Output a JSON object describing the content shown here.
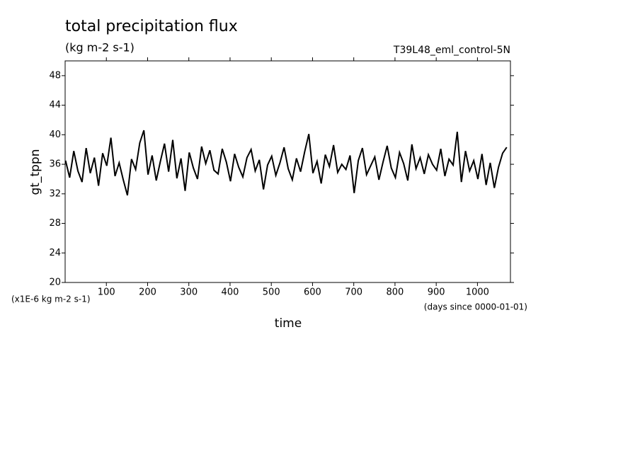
{
  "chart_data": {
    "type": "line",
    "title": "total precipitation flux",
    "subtitle": "(kg m-2 s-1)",
    "annotation": "T39L48_eml_control-5N",
    "y_label": "gt_tppn",
    "x_label": "time",
    "y_unit_note": "(x1E-6 kg m-2 s-1)",
    "x_unit_note": "(days since 0000-01-01)",
    "xlim": [
      0,
      1080
    ],
    "xticks": [
      100,
      200,
      300,
      400,
      500,
      600,
      700,
      800,
      900,
      1000
    ],
    "ylim": [
      20,
      50
    ],
    "yticks": [
      20,
      24,
      28,
      32,
      36,
      40,
      44,
      48
    ],
    "x": [
      1,
      11,
      21,
      31,
      41,
      51,
      61,
      71,
      81,
      91,
      101,
      111,
      121,
      131,
      141,
      151,
      161,
      171,
      181,
      191,
      201,
      211,
      221,
      231,
      241,
      251,
      261,
      271,
      281,
      291,
      301,
      311,
      321,
      331,
      341,
      351,
      361,
      371,
      381,
      391,
      401,
      411,
      421,
      431,
      441,
      451,
      461,
      471,
      481,
      491,
      501,
      511,
      521,
      531,
      541,
      551,
      561,
      571,
      581,
      591,
      601,
      611,
      621,
      631,
      641,
      651,
      661,
      671,
      681,
      691,
      701,
      711,
      721,
      731,
      741,
      751,
      761,
      771,
      781,
      791,
      801,
      811,
      821,
      831,
      841,
      851,
      861,
      871,
      881,
      891,
      901,
      911,
      921,
      931,
      941,
      951,
      961,
      971,
      981,
      991,
      1001,
      1011,
      1021,
      1031,
      1041,
      1051,
      1061,
      1071
    ],
    "series": [
      {
        "name": "gt_tppn",
        "color": "#000000",
        "values": [
          36.5,
          34.2,
          37.8,
          35.1,
          33.6,
          38.2,
          34.8,
          36.9,
          33.1,
          37.5,
          35.8,
          39.6,
          34.4,
          36.2,
          33.9,
          31.8,
          36.7,
          35.3,
          38.9,
          40.6,
          34.6,
          37.2,
          33.8,
          36.4,
          38.8,
          35.0,
          39.3,
          34.1,
          36.8,
          32.4,
          37.6,
          35.5,
          34.0,
          38.4,
          36.1,
          37.9,
          35.2,
          34.7,
          38.1,
          36.3,
          33.7,
          37.4,
          35.6,
          34.3,
          36.9,
          38.0,
          35.1,
          36.6,
          32.6,
          35.9,
          37.1,
          34.5,
          36.2,
          38.3,
          35.4,
          33.9,
          36.8,
          35.0,
          37.7,
          40.1,
          34.8,
          36.4,
          33.4,
          37.3,
          35.7,
          38.6,
          34.9,
          36.0,
          35.3,
          37.2,
          32.1,
          36.5,
          38.2,
          34.6,
          35.8,
          37.0,
          33.9,
          36.3,
          38.5,
          35.5,
          34.2,
          37.6,
          36.1,
          33.8,
          38.7,
          35.4,
          36.9,
          34.7,
          37.3,
          36.0,
          35.2,
          38.1,
          34.4,
          36.7,
          35.9,
          40.4,
          33.6,
          37.8,
          35.1,
          36.5,
          34.0,
          37.4,
          33.2,
          36.2,
          32.8,
          35.6,
          37.5,
          38.3
        ]
      }
    ]
  }
}
